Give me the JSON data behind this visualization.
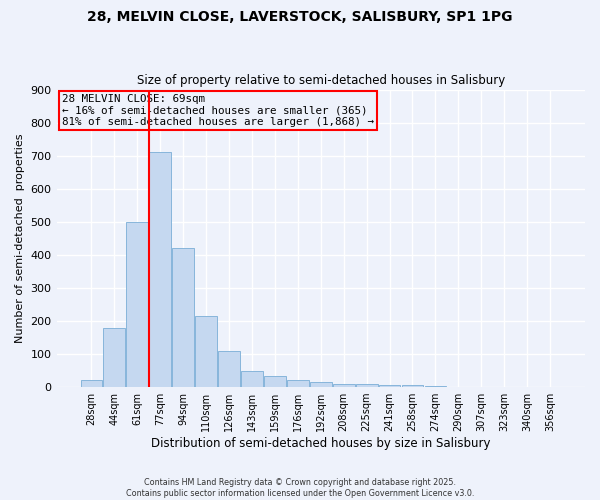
{
  "title": "28, MELVIN CLOSE, LAVERSTOCK, SALISBURY, SP1 1PG",
  "subtitle": "Size of property relative to semi-detached houses in Salisbury",
  "xlabel": "Distribution of semi-detached houses by size in Salisbury",
  "ylabel": "Number of semi-detached  properties",
  "bar_color": "#c5d8f0",
  "bar_edge_color": "#7aaed6",
  "categories": [
    "28sqm",
    "44sqm",
    "61sqm",
    "77sqm",
    "94sqm",
    "110sqm",
    "126sqm",
    "143sqm",
    "159sqm",
    "176sqm",
    "192sqm",
    "208sqm",
    "225sqm",
    "241sqm",
    "258sqm",
    "274sqm",
    "290sqm",
    "307sqm",
    "323sqm",
    "340sqm",
    "356sqm"
  ],
  "values": [
    20,
    180,
    500,
    710,
    420,
    215,
    110,
    50,
    35,
    20,
    15,
    10,
    10,
    5,
    5,
    2,
    1,
    0,
    0,
    0,
    0
  ],
  "red_line_x": 2.5,
  "annotation_title": "28 MELVIN CLOSE: 69sqm",
  "annotation_line1": "← 16% of semi-detached houses are smaller (365)",
  "annotation_line2": "81% of semi-detached houses are larger (1,868) →",
  "ylim": [
    0,
    900
  ],
  "yticks": [
    0,
    100,
    200,
    300,
    400,
    500,
    600,
    700,
    800,
    900
  ],
  "background_color": "#eef2fb",
  "grid_color": "#ffffff",
  "footer1": "Contains HM Land Registry data © Crown copyright and database right 2025.",
  "footer2": "Contains public sector information licensed under the Open Government Licence v3.0."
}
